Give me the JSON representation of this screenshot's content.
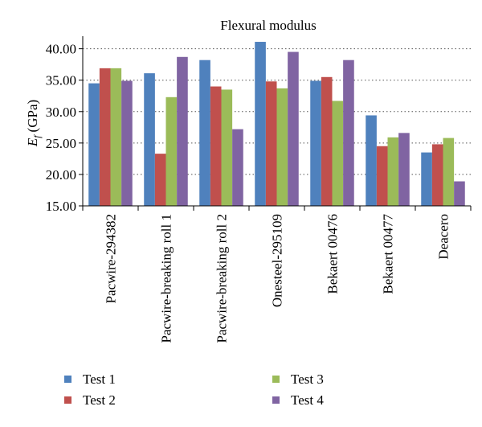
{
  "chart_data": {
    "type": "bar",
    "title": "Flexural modulus",
    "ylabel_symbol": "E",
    "ylabel_sub": "f",
    "ylabel_unit": "(GPa)",
    "xlabel": "",
    "ylim": [
      15,
      42
    ],
    "yticks": [
      "15.00",
      "20.00",
      "25.00",
      "30.00",
      "35.00",
      "40.00"
    ],
    "ytick_values": [
      15,
      20,
      25,
      30,
      35,
      40
    ],
    "grid": true,
    "legend_position": "bottom",
    "categories": [
      "Pacwire-294382",
      "Pacwire-breaking roll 1",
      "Pacwire-breaking roll 2",
      "Onesteel-295109",
      "Bekaert 00476",
      "Bekaert 00477",
      "Deacero"
    ],
    "series": [
      {
        "name": "Test 1",
        "color": "#4f81bd",
        "values": [
          34.5,
          36.1,
          38.2,
          41.1,
          34.9,
          29.4,
          23.5
        ]
      },
      {
        "name": "Test 2",
        "color": "#c0504d",
        "values": [
          36.9,
          23.3,
          34.0,
          34.8,
          35.5,
          24.5,
          24.8
        ]
      },
      {
        "name": "Test 3",
        "color": "#9bbb59",
        "values": [
          36.9,
          32.3,
          33.5,
          33.7,
          31.7,
          25.9,
          25.8
        ]
      },
      {
        "name": "Test 4",
        "color": "#8064a2",
        "values": [
          34.9,
          38.7,
          27.2,
          39.5,
          38.2,
          26.6,
          18.9
        ]
      }
    ]
  }
}
